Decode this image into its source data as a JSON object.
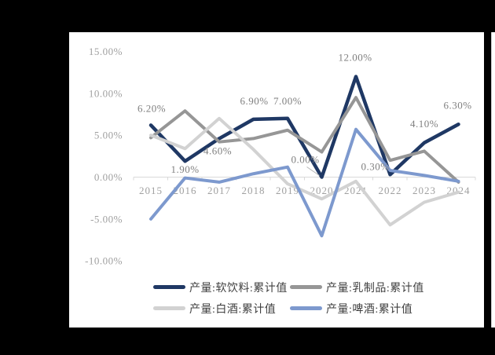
{
  "page": {
    "background": "#000000",
    "panel_background": "#ffffff"
  },
  "chart_data": {
    "type": "line",
    "categories": [
      "2015",
      "2016",
      "2017",
      "2018",
      "2019",
      "2020",
      "2021",
      "2022",
      "2023",
      "2024"
    ],
    "y_axis": {
      "ticks": [
        "15.00%",
        "10.00%",
        "5.00%",
        "0.00%",
        "-5.00%",
        "-10.00%"
      ],
      "tick_values": [
        15,
        10,
        5,
        0,
        -5,
        -10
      ],
      "range": [
        -10,
        15
      ],
      "unit": "%"
    },
    "grid": false,
    "legend_position": "bottom",
    "axis_color": "#d9d9d9",
    "label_color": "#7f7f7f",
    "tick_color": "#a0a0a0",
    "series": [
      {
        "name": "产量:软饮料:累计值",
        "color": "#1F3864",
        "width": 4.5,
        "values": [
          6.2,
          1.9,
          4.6,
          6.9,
          7.0,
          0.0,
          12.0,
          0.3,
          4.1,
          6.3
        ],
        "point_labels": [
          "6.20%",
          "1.90%",
          "4.60%",
          "6.90%",
          "7.00%",
          "0.00%",
          "12.00%",
          "0.30%",
          "4.10%",
          "6.30%"
        ]
      },
      {
        "name": "产量:乳制品:累计值",
        "color": "#969696",
        "width": 4,
        "values": [
          4.7,
          7.9,
          4.2,
          4.6,
          5.6,
          3.0,
          9.5,
          2.0,
          3.1,
          -0.6
        ]
      },
      {
        "name": "产量:白酒:累计值",
        "color": "#D2D2D2",
        "width": 4,
        "values": [
          5.0,
          3.4,
          7.0,
          3.3,
          -0.8,
          -2.6,
          -0.5,
          -5.7,
          -3.0,
          -1.8
        ]
      },
      {
        "name": "产量:啤酒:累计值",
        "color": "#7D99CE",
        "width": 4,
        "values": [
          -5.0,
          -0.1,
          -0.6,
          0.4,
          1.2,
          -7.0,
          5.7,
          0.8,
          0.2,
          -0.5
        ]
      }
    ]
  }
}
